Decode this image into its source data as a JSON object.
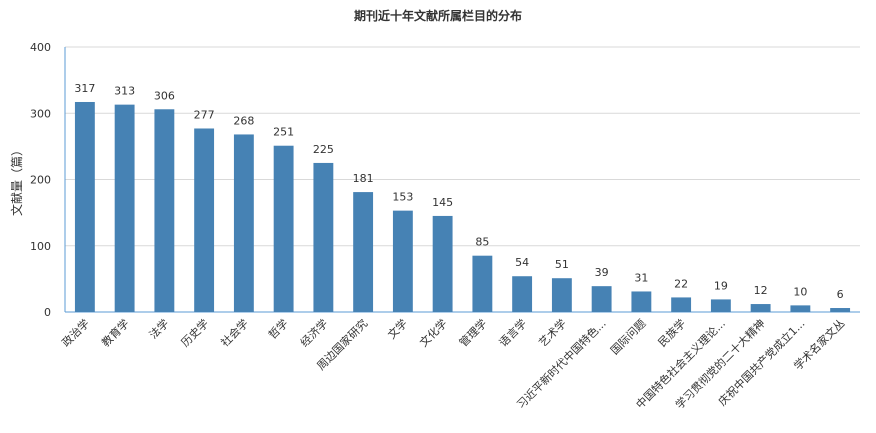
{
  "chart_data": {
    "type": "bar",
    "title": "期刊近十年文献所属栏目的分布",
    "ylabel": "文献量（篇）",
    "xlabel": "",
    "ylim": [
      0,
      400
    ],
    "yticks": [
      0,
      100,
      200,
      300,
      400
    ],
    "grid": true,
    "bar_color": "#4682b4",
    "categories": [
      "政治学",
      "教育学",
      "法学",
      "历史学",
      "社会学",
      "哲学",
      "经济学",
      "周边国家研究",
      "文学",
      "文化学",
      "管理学",
      "语言学",
      "艺术学",
      "习近平新时代中国特色...",
      "国际问题",
      "民族学",
      "中国特色社会主义理论...",
      "学习贯彻党的二十大精神",
      "庆祝中国共产党成立1...",
      "学术名家文丛"
    ],
    "values": [
      317,
      313,
      306,
      277,
      268,
      251,
      225,
      181,
      153,
      145,
      85,
      54,
      51,
      39,
      31,
      22,
      19,
      12,
      10,
      6
    ]
  }
}
